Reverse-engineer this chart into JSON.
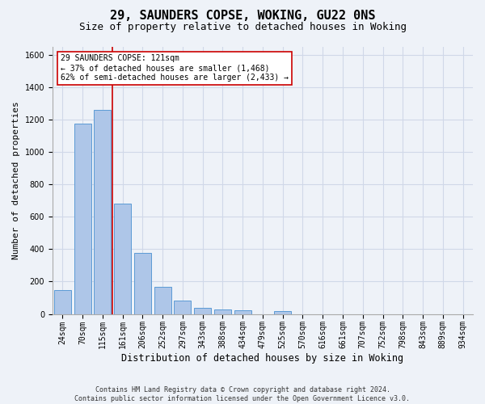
{
  "title1": "29, SAUNDERS COPSE, WOKING, GU22 0NS",
  "title2": "Size of property relative to detached houses in Woking",
  "xlabel": "Distribution of detached houses by size in Woking",
  "ylabel": "Number of detached properties",
  "categories": [
    "24sqm",
    "70sqm",
    "115sqm",
    "161sqm",
    "206sqm",
    "252sqm",
    "297sqm",
    "343sqm",
    "388sqm",
    "434sqm",
    "479sqm",
    "525sqm",
    "570sqm",
    "616sqm",
    "661sqm",
    "707sqm",
    "752sqm",
    "798sqm",
    "843sqm",
    "889sqm",
    "934sqm"
  ],
  "values": [
    148,
    1175,
    1260,
    680,
    375,
    168,
    82,
    38,
    30,
    22,
    0,
    18,
    0,
    0,
    0,
    0,
    0,
    0,
    0,
    0,
    0
  ],
  "bar_color": "#aec6e8",
  "bar_edge_color": "#5b9bd5",
  "vline_x": 2.5,
  "vline_color": "#cc0000",
  "annotation_line1": "29 SAUNDERS COPSE: 121sqm",
  "annotation_line2": "← 37% of detached houses are smaller (1,468)",
  "annotation_line3": "62% of semi-detached houses are larger (2,433) →",
  "annotation_box_color": "#ffffff",
  "annotation_box_edge": "#cc0000",
  "ylim": [
    0,
    1650
  ],
  "yticks": [
    0,
    200,
    400,
    600,
    800,
    1000,
    1200,
    1400,
    1600
  ],
  "grid_color": "#d0d8e8",
  "background_color": "#eef2f8",
  "footer": "Contains HM Land Registry data © Crown copyright and database right 2024.\nContains public sector information licensed under the Open Government Licence v3.0.",
  "title1_fontsize": 11,
  "title2_fontsize": 9,
  "xlabel_fontsize": 8.5,
  "ylabel_fontsize": 8,
  "tick_fontsize": 7,
  "footer_fontsize": 6,
  "annotation_fontsize": 7
}
